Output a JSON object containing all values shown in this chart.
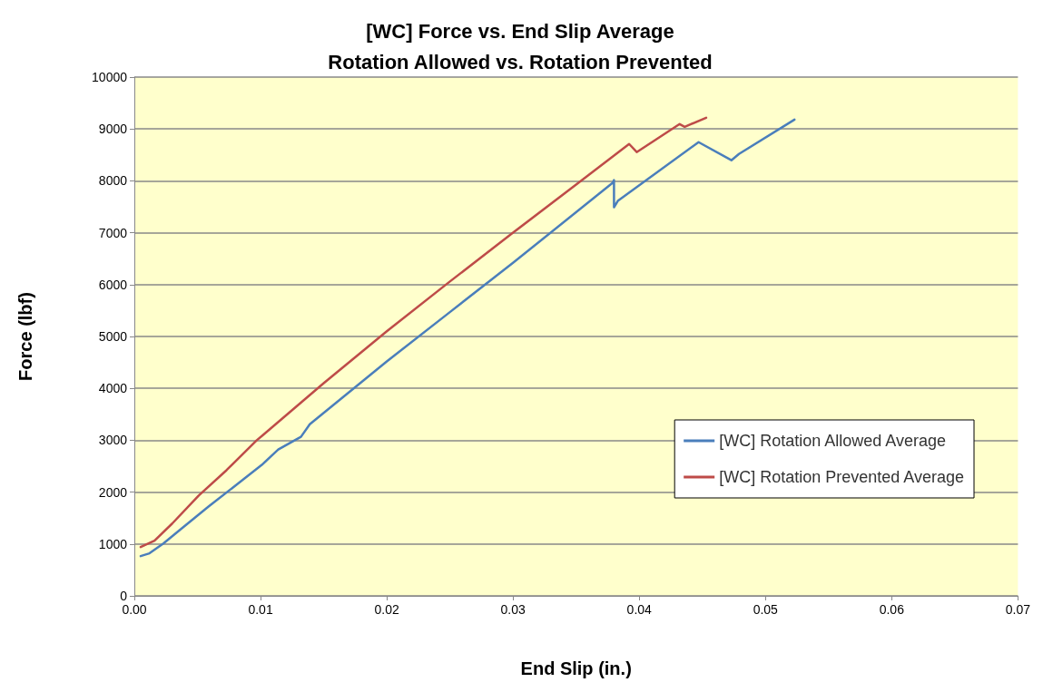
{
  "chart_data": {
    "type": "line",
    "title": "[WC] Force vs. End Slip Average\nRotation Allowed vs. Rotation Prevented",
    "xlabel": "End Slip (in.)",
    "ylabel": "Force (lbf)",
    "xlim": [
      0,
      0.07
    ],
    "xticks": [
      {
        "value": 0,
        "label": "0.00"
      },
      {
        "value": 0.01,
        "label": "0.01"
      },
      {
        "value": 0.02,
        "label": "0.02"
      },
      {
        "value": 0.03,
        "label": "0.03"
      },
      {
        "value": 0.04,
        "label": "0.04"
      },
      {
        "value": 0.05,
        "label": "0.05"
      },
      {
        "value": 0.06,
        "label": "0.06"
      },
      {
        "value": 0.07,
        "label": "0.07"
      }
    ],
    "ylim": [
      0,
      10000
    ],
    "yticks": [
      0,
      1000,
      2000,
      3000,
      4000,
      5000,
      6000,
      7000,
      8000,
      9000,
      10000
    ],
    "grid": "y",
    "legend": "right",
    "marker": "none",
    "line_style": "solid",
    "series": [
      {
        "name": "[WC] Rotation Allowed Average",
        "color": "#4a7ebb",
        "x": [
          0.0005,
          0.0012,
          0.0023,
          0.0037,
          0.0059,
          0.008,
          0.0101,
          0.0114,
          0.0132,
          0.0139,
          0.02,
          0.025,
          0.03,
          0.0379,
          0.038,
          0.038,
          0.0383,
          0.0447,
          0.0473,
          0.0479,
          0.0523
        ],
        "values": [
          767,
          820,
          1010,
          1290,
          1725,
          2125,
          2525,
          2820,
          3066,
          3310,
          4520,
          5470,
          6420,
          7962,
          8014,
          7491,
          7613,
          8746,
          8397,
          8519,
          9181
        ]
      },
      {
        "name": "[WC] Rotation Prevented Average",
        "color": "#be4b48",
        "x": [
          0.0005,
          0.0016,
          0.003,
          0.0051,
          0.0073,
          0.0097,
          0.0101,
          0.015,
          0.02,
          0.025,
          0.03,
          0.035,
          0.0392,
          0.0398,
          0.0432,
          0.0436,
          0.0453
        ],
        "values": [
          940,
          1063,
          1394,
          1934,
          2422,
          3000,
          3080,
          4100,
          5100,
          6060,
          7000,
          7930,
          8711,
          8554,
          9094,
          9042,
          9216
        ]
      }
    ]
  }
}
